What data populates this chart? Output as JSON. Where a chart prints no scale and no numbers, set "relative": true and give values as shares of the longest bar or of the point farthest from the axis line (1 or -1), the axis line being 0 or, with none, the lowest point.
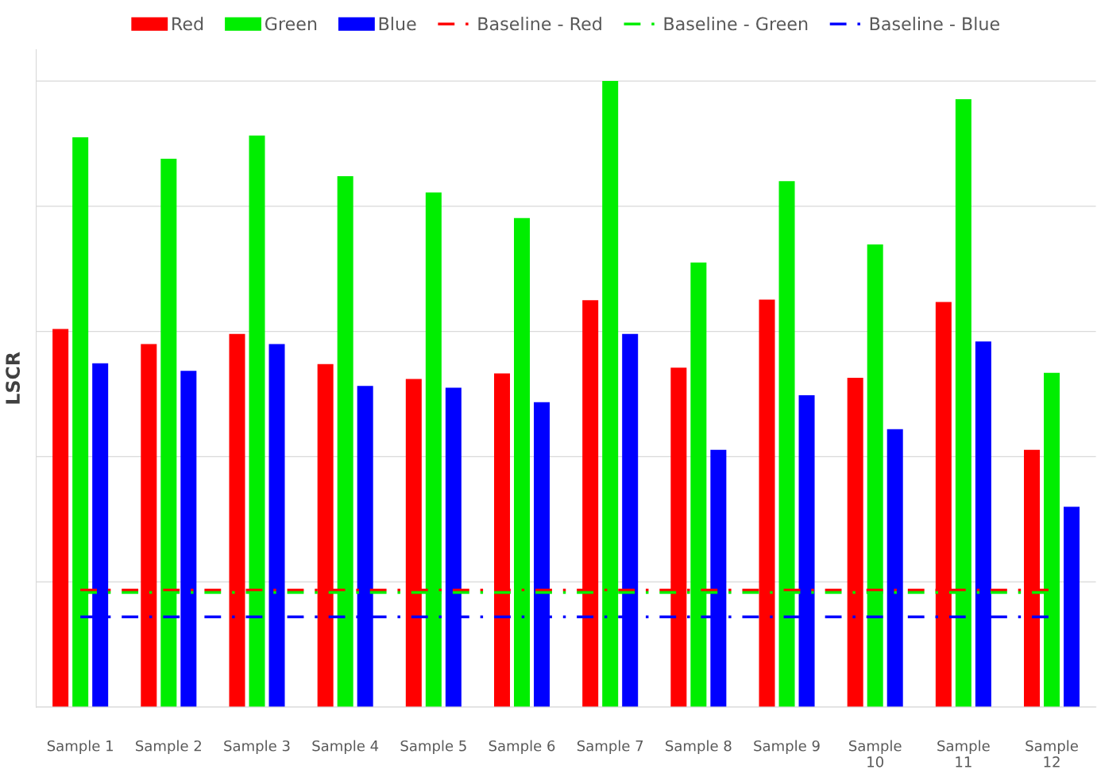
{
  "chart_data": {
    "type": "bar",
    "ylabel": "LSCR",
    "relative": true,
    "grid": "y",
    "legend": "top",
    "tick_labels": "x",
    "categories": [
      "Sample 1",
      "Sample 2",
      "Sample 3",
      "Sample 4",
      "Sample 5",
      "Sample 6",
      "Sample 7",
      "Sample 8",
      "Sample 9",
      "Sample\n10",
      "Sample\n11",
      "Sample\n12"
    ],
    "series": [
      {
        "name": "Red",
        "color": "#ff0000",
        "values": [
          0.604,
          0.58,
          0.596,
          0.548,
          0.524,
          0.533,
          0.65,
          0.542,
          0.651,
          0.526,
          0.647,
          0.411
        ]
      },
      {
        "name": "Green",
        "color": "#00ee00",
        "values": [
          0.91,
          0.876,
          0.913,
          0.848,
          0.822,
          0.781,
          1.0,
          0.71,
          0.84,
          0.739,
          0.971,
          0.534
        ]
      },
      {
        "name": "Blue",
        "color": "#0000ff",
        "values": [
          0.549,
          0.537,
          0.58,
          0.513,
          0.51,
          0.487,
          0.596,
          0.411,
          0.498,
          0.444,
          0.584,
          0.32
        ]
      }
    ],
    "ref_lines": [
      {
        "axis": "y",
        "value": 0.187,
        "label": "Baseline - Red",
        "color": "#ff0000",
        "line_style": "dashed"
      },
      {
        "axis": "y",
        "value": 0.183,
        "label": "Baseline - Green",
        "color": "#00ee00",
        "line_style": "dashed"
      },
      {
        "axis": "y",
        "value": 0.144,
        "label": "Baseline - Blue",
        "color": "#0000ff",
        "line_style": "dashed"
      }
    ]
  }
}
